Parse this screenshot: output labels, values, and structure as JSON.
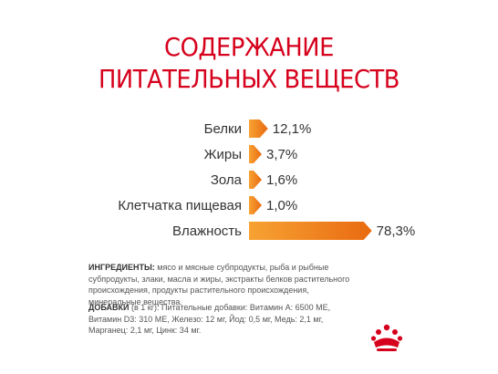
{
  "title": {
    "line1": "СОДЕРЖАНИЕ",
    "line2": "ПИТАТЕЛЬНЫХ ВЕЩЕСТВ"
  },
  "chart_data": {
    "type": "bar",
    "orientation": "horizontal",
    "categories": [
      "Белки",
      "Жиры",
      "Зола",
      "Клетчатка пищевая",
      "Влажность"
    ],
    "values": [
      12.1,
      3.7,
      1.6,
      1.0,
      78.3
    ],
    "value_labels": [
      "12,1%",
      "3,7%",
      "1,6%",
      "1,0%",
      "78,3%"
    ],
    "unit": "%",
    "xlim": [
      0,
      100
    ],
    "grid": false,
    "colors": {
      "bar_start": "#f7a233",
      "bar_end": "#e96a10"
    }
  },
  "ingredients": {
    "label": "ИНГРЕДИЕНТЫ:",
    "text": " мясо и мясные субпродукты, рыба и рыбные субпродукты, злаки, масла и жиры, экстракты белков растительного происхождения, продукты растительного происхождения, минеральные вещества."
  },
  "additives": {
    "label": "ДОБАВКИ",
    "text": " (в 1 кг): Питательные добавки: Витамин А: 6500 МЕ, Витамин D3: 310 МЕ, Железо: 12 мг, Йод: 0,5 мг, Медь: 2,1 мг, Марганец: 2,1 мг, Цинк: 34 мг."
  },
  "brand": {
    "logo_icon": "royal-crown-icon",
    "color": "#d6001c"
  }
}
